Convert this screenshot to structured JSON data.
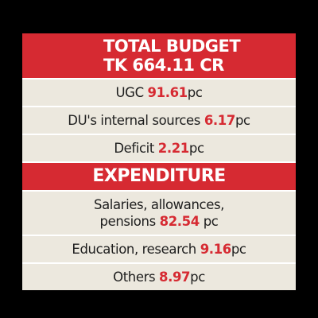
{
  "budget": {
    "title_lines": [
      "TOTAL BUDGET",
      "TK 664.11 CR"
    ],
    "rows": [
      {
        "label": "UGC",
        "value": "91.61",
        "unit": "pc"
      },
      {
        "label": "DU's internal sources",
        "value": "6.17",
        "unit": "pc"
      },
      {
        "label": "Deficit",
        "value": "2.21",
        "unit": "pc"
      }
    ]
  },
  "expenditure": {
    "title": "EXPENDITURE",
    "rows": [
      {
        "label": "Salaries, allowances, pensions",
        "value": "82.54",
        "unit": "pc"
      },
      {
        "label": "Education, research",
        "value": "9.16",
        "unit": "pc"
      },
      {
        "label": "Others",
        "value": "8.97",
        "unit": "pc"
      }
    ]
  }
}
